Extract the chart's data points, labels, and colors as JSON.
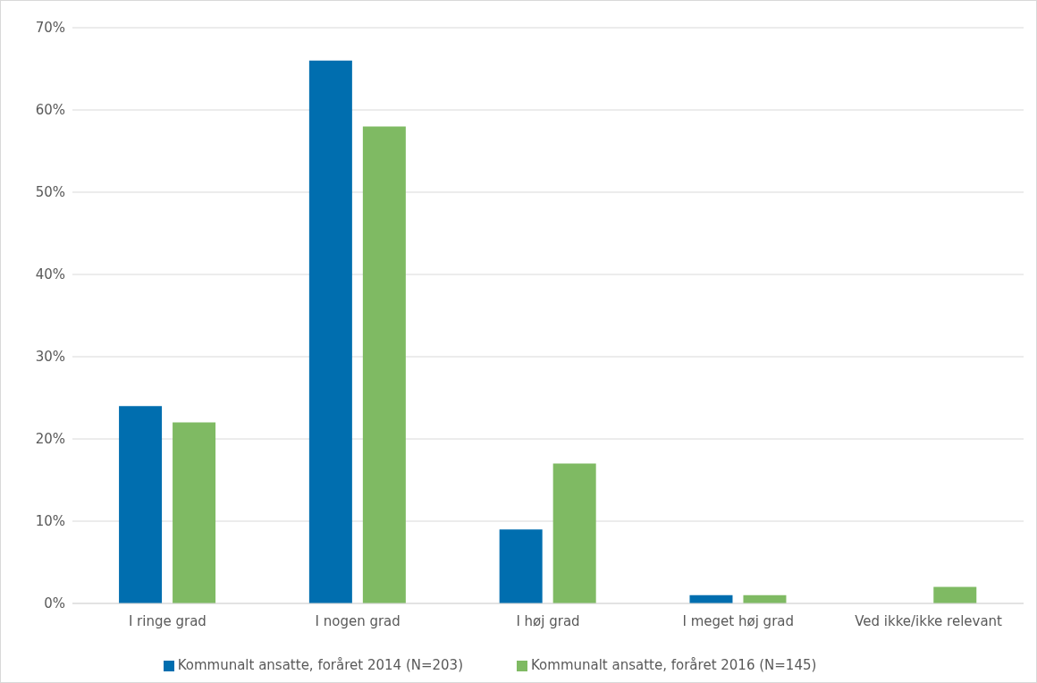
{
  "chart_data": {
    "type": "bar",
    "categories": [
      "I ringe grad",
      "I nogen grad",
      "I høj grad",
      "I meget høj grad",
      "Ved ikke/ikke relevant"
    ],
    "series": [
      {
        "name": "Kommunalt ansatte, foråret 2014 (N=203)",
        "color": "#006eaf",
        "values": [
          24,
          66,
          9,
          1,
          0
        ]
      },
      {
        "name": "Kommunalt ansatte, foråret 2016 (N=145)",
        "color": "#7fba63",
        "values": [
          22,
          58,
          17,
          1,
          2
        ]
      }
    ],
    "ylim": [
      0,
      70
    ],
    "yticks": [
      {
        "value": 0,
        "label": "0%"
      },
      {
        "value": 10,
        "label": "10%"
      },
      {
        "value": 20,
        "label": "20%"
      },
      {
        "value": 30,
        "label": "30%"
      },
      {
        "value": 40,
        "label": "40%"
      },
      {
        "value": 50,
        "label": "50%"
      },
      {
        "value": 60,
        "label": "60%"
      },
      {
        "value": 70,
        "label": "70%"
      }
    ],
    "grid": "y",
    "legend": "bottom"
  }
}
